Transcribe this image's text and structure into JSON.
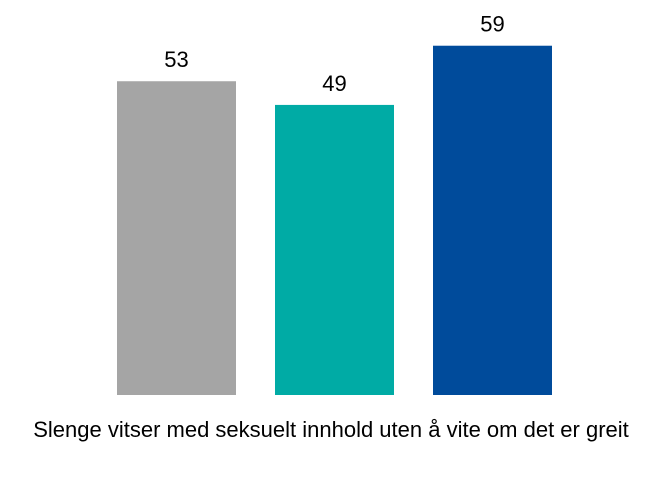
{
  "chart_data": {
    "type": "bar",
    "categories": [
      "Slenge vitser med seksuelt innhold uten å vite om det er greit"
    ],
    "series": [
      {
        "color": "#a5a5a5",
        "values": [
          53
        ]
      },
      {
        "color": "#00aba5",
        "values": [
          49
        ]
      },
      {
        "color": "#004b9b",
        "values": [
          59
        ]
      }
    ]
  }
}
